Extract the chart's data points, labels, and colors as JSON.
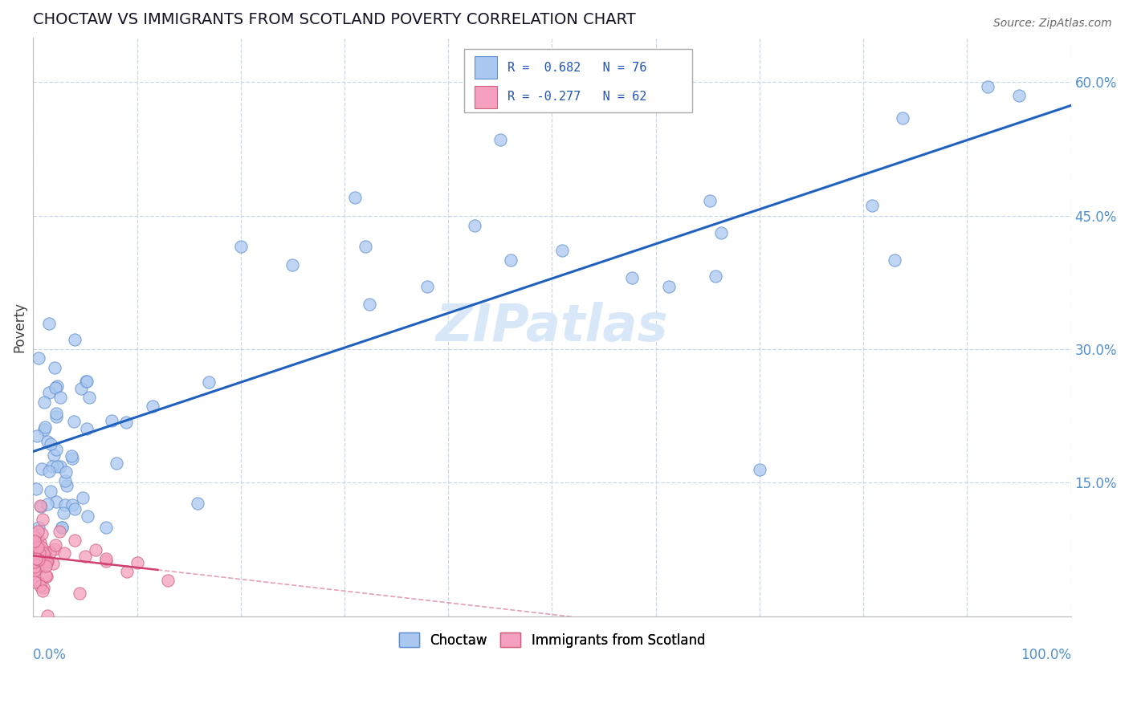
{
  "title": "CHOCTAW VS IMMIGRANTS FROM SCOTLAND POVERTY CORRELATION CHART",
  "source": "Source: ZipAtlas.com",
  "ylabel": "Poverty",
  "choctaw_color": "#aac8f0",
  "choctaw_edge": "#6090d0",
  "scotland_color": "#f5a0be",
  "scotland_edge": "#d06080",
  "trend_choctaw_color": "#2060c0",
  "trend_scotland_color": "#d04070",
  "watermark_color": "#d8e8f8",
  "background_color": "#ffffff",
  "ylim": [
    0.0,
    0.65
  ],
  "xlim": [
    0.0,
    1.0
  ],
  "right_yticks": [
    0.0,
    0.15,
    0.3,
    0.45,
    0.6
  ],
  "right_yticklabels": [
    "",
    "15.0%",
    "30.0%",
    "45.0%",
    "60.0%"
  ],
  "tick_color": "#5090d0"
}
